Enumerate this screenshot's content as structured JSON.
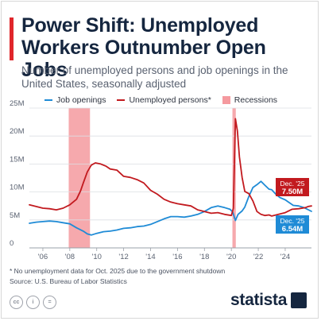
{
  "header": {
    "title": "Power Shift: Unemployed Workers Outnumber Open Jobs",
    "subtitle": "Number of unemployed persons and job openings in the United States, seasonally adjusted"
  },
  "legend": {
    "job_openings": "Job openings",
    "unemployed": "Unemployed persons*",
    "recessions": "Recessions"
  },
  "callouts": {
    "unemployed": {
      "date": "Dec. '25",
      "value": "7.50M"
    },
    "openings": {
      "date": "Dec. '25",
      "value": "6.54M"
    }
  },
  "footer": {
    "note": "* No unemployment data for Oct. 2025 due to the government shutdown",
    "source": "Source: U.S. Bureau of Labor Statistics",
    "brand": "statista"
  },
  "colors": {
    "openings": "#1f8bd6",
    "unemployed": "#c21a1f",
    "recession": "#f59a9f",
    "title": "#15263f",
    "accent": "#e0262b"
  },
  "chart_data": {
    "type": "line",
    "ylim": [
      0,
      25
    ],
    "xlim": [
      2005,
      2025.95
    ],
    "grid": true,
    "legend_position": "top",
    "yticks": [
      0,
      5,
      10,
      15,
      20,
      25
    ],
    "ytick_labels": [
      "0",
      "5M",
      "10M",
      "15M",
      "20M",
      "25M"
    ],
    "xticks": [
      2006,
      2008,
      2010,
      2012,
      2014,
      2016,
      2018,
      2020,
      2022,
      2024
    ],
    "xtick_labels": [
      "'06",
      "'08",
      "'10",
      "'12",
      "'14",
      "'16",
      "'18",
      "'20",
      "'22",
      "'24"
    ],
    "recessions": [
      [
        2007.92,
        2009.5
      ],
      [
        2020.08,
        2020.33
      ]
    ],
    "series": [
      {
        "name": "Job openings",
        "points": [
          [
            2005.0,
            4.4
          ],
          [
            2005.5,
            4.6
          ],
          [
            2006.0,
            4.7
          ],
          [
            2006.5,
            4.8
          ],
          [
            2007.0,
            4.7
          ],
          [
            2007.5,
            4.5
          ],
          [
            2008.0,
            4.3
          ],
          [
            2008.5,
            3.6
          ],
          [
            2009.0,
            3.0
          ],
          [
            2009.3,
            2.5
          ],
          [
            2009.6,
            2.3
          ],
          [
            2010.0,
            2.6
          ],
          [
            2010.5,
            2.9
          ],
          [
            2011.0,
            3.0
          ],
          [
            2011.5,
            3.2
          ],
          [
            2012.0,
            3.5
          ],
          [
            2012.5,
            3.6
          ],
          [
            2013.0,
            3.8
          ],
          [
            2013.5,
            3.9
          ],
          [
            2014.0,
            4.2
          ],
          [
            2014.5,
            4.7
          ],
          [
            2015.0,
            5.2
          ],
          [
            2015.5,
            5.6
          ],
          [
            2016.0,
            5.6
          ],
          [
            2016.5,
            5.5
          ],
          [
            2017.0,
            5.7
          ],
          [
            2017.5,
            6.0
          ],
          [
            2018.0,
            6.5
          ],
          [
            2018.5,
            7.2
          ],
          [
            2019.0,
            7.5
          ],
          [
            2019.5,
            7.2
          ],
          [
            2019.9,
            6.9
          ],
          [
            2020.1,
            6.4
          ],
          [
            2020.3,
            4.9
          ],
          [
            2020.5,
            6.0
          ],
          [
            2020.8,
            6.6
          ],
          [
            2021.0,
            7.3
          ],
          [
            2021.3,
            9.2
          ],
          [
            2021.6,
            10.8
          ],
          [
            2021.9,
            11.3
          ],
          [
            2022.2,
            11.9
          ],
          [
            2022.5,
            11.2
          ],
          [
            2022.8,
            10.5
          ],
          [
            2023.0,
            10.4
          ],
          [
            2023.3,
            9.6
          ],
          [
            2023.6,
            9.0
          ],
          [
            2024.0,
            8.6
          ],
          [
            2024.3,
            8.1
          ],
          [
            2024.6,
            7.6
          ],
          [
            2025.0,
            7.5
          ],
          [
            2025.4,
            7.2
          ],
          [
            2025.95,
            6.54
          ]
        ]
      },
      {
        "name": "Unemployed persons*",
        "points": [
          [
            2005.0,
            7.7
          ],
          [
            2005.5,
            7.4
          ],
          [
            2006.0,
            7.1
          ],
          [
            2006.5,
            7.0
          ],
          [
            2007.0,
            6.8
          ],
          [
            2007.5,
            7.1
          ],
          [
            2008.0,
            7.7
          ],
          [
            2008.5,
            8.7
          ],
          [
            2008.8,
            10.2
          ],
          [
            2009.0,
            11.6
          ],
          [
            2009.3,
            13.6
          ],
          [
            2009.6,
            14.8
          ],
          [
            2009.9,
            15.2
          ],
          [
            2010.3,
            15.0
          ],
          [
            2010.7,
            14.6
          ],
          [
            2011.0,
            14.1
          ],
          [
            2011.5,
            13.9
          ],
          [
            2012.0,
            12.8
          ],
          [
            2012.5,
            12.6
          ],
          [
            2013.0,
            12.2
          ],
          [
            2013.5,
            11.6
          ],
          [
            2014.0,
            10.3
          ],
          [
            2014.5,
            9.6
          ],
          [
            2015.0,
            8.7
          ],
          [
            2015.5,
            8.2
          ],
          [
            2016.0,
            7.9
          ],
          [
            2016.5,
            7.7
          ],
          [
            2017.0,
            7.5
          ],
          [
            2017.5,
            6.8
          ],
          [
            2018.0,
            6.5
          ],
          [
            2018.5,
            6.2
          ],
          [
            2019.0,
            6.3
          ],
          [
            2019.5,
            6.0
          ],
          [
            2020.0,
            5.8
          ],
          [
            2020.15,
            7.1
          ],
          [
            2020.3,
            23.1
          ],
          [
            2020.45,
            20.9
          ],
          [
            2020.6,
            16.3
          ],
          [
            2020.8,
            12.6
          ],
          [
            2021.0,
            10.1
          ],
          [
            2021.3,
            9.7
          ],
          [
            2021.6,
            8.4
          ],
          [
            2021.9,
            6.5
          ],
          [
            2022.2,
            6.0
          ],
          [
            2022.5,
            5.8
          ],
          [
            2022.8,
            5.9
          ],
          [
            2023.0,
            5.7
          ],
          [
            2023.5,
            6.0
          ],
          [
            2024.0,
            6.3
          ],
          [
            2024.5,
            6.9
          ],
          [
            2025.0,
            7.0
          ],
          [
            2025.5,
            7.2
          ],
          [
            2025.7,
            7.4
          ],
          [
            2025.95,
            7.5
          ]
        ]
      }
    ]
  }
}
